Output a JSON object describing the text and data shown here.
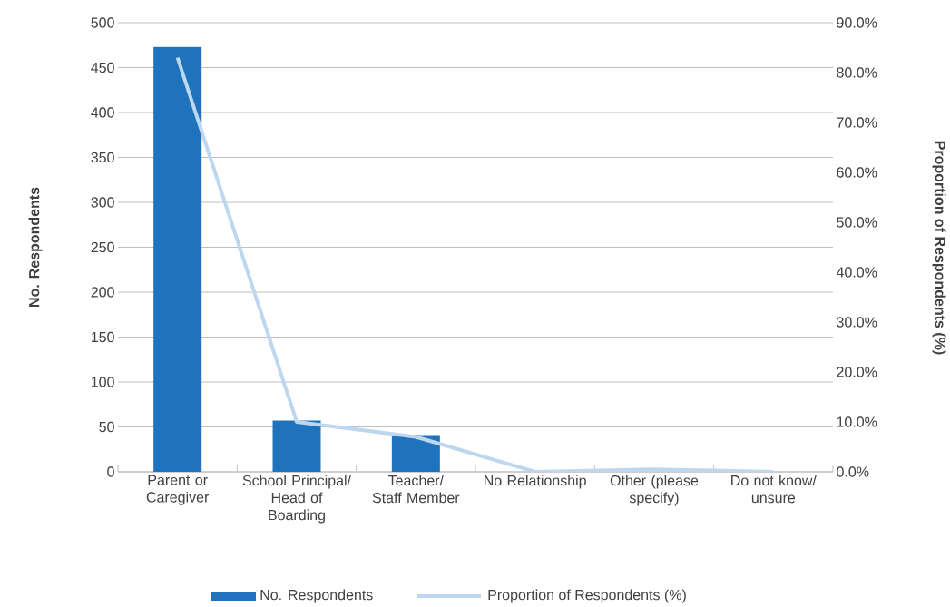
{
  "chart_data": {
    "type": "bar",
    "xlabel": null,
    "ylabel": "No. Respondents",
    "y2label": "Proportion of Respondents (%)",
    "categories": [
      "Parent or Caregiver",
      "School Principal/ Head of Boarding",
      "Teacher/ Staff Member",
      "No Relationship",
      "Other (please specify)",
      "Do not know/ unsure"
    ],
    "series": [
      {
        "name": "No. Respondents",
        "color": "#1f73bd",
        "values": [
          473,
          57,
          41,
          0,
          0,
          0
        ]
      },
      {
        "name": "Proportion of Respondents (%)",
        "type": "line",
        "axis": "y2",
        "color": "#bdd7ee",
        "values": [
          83,
          10,
          7,
          0,
          0.5,
          0
        ]
      }
    ],
    "ylim": [
      0,
      500
    ],
    "yticks": [
      0,
      50,
      100,
      150,
      200,
      250,
      300,
      350,
      400,
      450,
      500
    ],
    "y2lim": [
      0,
      90
    ],
    "y2ticks": [
      {
        "value": 0,
        "label": "0.0%"
      },
      {
        "value": 10,
        "label": "10.0%"
      },
      {
        "value": 20,
        "label": "20.0%"
      },
      {
        "value": 30,
        "label": "30.0%"
      },
      {
        "value": 40,
        "label": "40.0%"
      },
      {
        "value": 50,
        "label": "50.0%"
      },
      {
        "value": 60,
        "label": "60.0%"
      },
      {
        "value": 70,
        "label": "70.0%"
      },
      {
        "value": 80,
        "label": "80.0%"
      },
      {
        "value": 90,
        "label": "90.0%"
      }
    ],
    "grid": "y",
    "legend": "bottom",
    "marker": "none",
    "line_style": "solid"
  }
}
